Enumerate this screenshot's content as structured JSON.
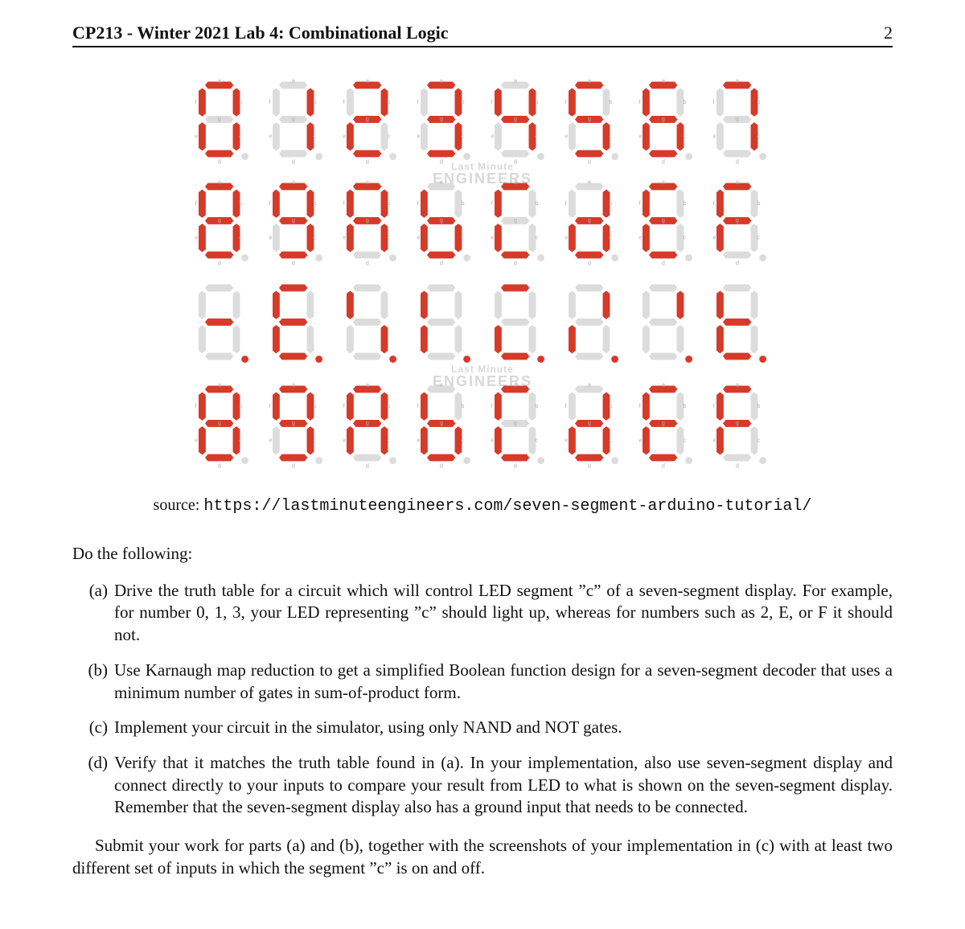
{
  "header": {
    "title": "CP213 - Winter 2021 Lab 4: Combinational Logic",
    "page_number": "2"
  },
  "caption": {
    "prefix": "source: ",
    "url": "https://lastminuteengineers.com/seven-segment-arduino-tutorial/"
  },
  "lead": "Do the following:",
  "tasks": [
    {
      "label": "(a)",
      "text": "Drive the truth table for a circuit which will control LED segment ”c” of a seven-segment display. For example, for number 0, 1, 3, your LED representing ”c” should light up, whereas for numbers such as 2, E, or F it should not."
    },
    {
      "label": "(b)",
      "text": "Use Karnaugh map reduction to get a simplified Boolean function design for a seven-segment decoder that uses a minimum number of gates in sum-of-product form."
    },
    {
      "label": "(c)",
      "text": "Implement your circuit in the simulator, using only NAND and NOT gates."
    },
    {
      "label": "(d)",
      "text": "Verify that it matches the truth table found in (a). In your implementation, also use seven-segment display and connect directly to your inputs to compare your result from LED to what is shown on the seven-segment display. Remember that the seven-segment display also has a ground input that needs to be connected."
    }
  ],
  "closing": "Submit your work for parts (a) and (b), together with the screenshots of your implementation in (c) with at least two different set of inputs in which the segment ”c” is on and off.",
  "figure": {
    "type": "infographic",
    "background_color": "#ffffff",
    "segment_on_color": "#d63a29",
    "segment_off_color": "#dcdcdc",
    "segment_outline": "#c7c7c7",
    "dp_present": true,
    "label_color": "#b0b0b0",
    "watermark_text_top": "Last Minute",
    "watermark_text_bottom": "ENGINEERS",
    "watermark_color": "#d8d8d8",
    "rows": [
      {
        "scale": 1.0,
        "labels": true,
        "digits": [
          {
            "name": "0",
            "seg": {
              "a": 1,
              "b": 1,
              "c": 1,
              "d": 1,
              "e": 1,
              "f": 1,
              "g": 0
            },
            "dp": 0
          },
          {
            "name": "1",
            "seg": {
              "a": 0,
              "b": 1,
              "c": 1,
              "d": 0,
              "e": 0,
              "f": 0,
              "g": 0
            },
            "dp": 0
          },
          {
            "name": "2",
            "seg": {
              "a": 1,
              "b": 1,
              "c": 0,
              "d": 1,
              "e": 1,
              "f": 0,
              "g": 1
            },
            "dp": 0
          },
          {
            "name": "3",
            "seg": {
              "a": 1,
              "b": 1,
              "c": 1,
              "d": 1,
              "e": 0,
              "f": 0,
              "g": 1
            },
            "dp": 0
          },
          {
            "name": "4",
            "seg": {
              "a": 0,
              "b": 1,
              "c": 1,
              "d": 0,
              "e": 0,
              "f": 1,
              "g": 1
            },
            "dp": 0
          },
          {
            "name": "5",
            "seg": {
              "a": 1,
              "b": 0,
              "c": 1,
              "d": 1,
              "e": 0,
              "f": 1,
              "g": 1
            },
            "dp": 0
          },
          {
            "name": "6",
            "seg": {
              "a": 1,
              "b": 0,
              "c": 1,
              "d": 1,
              "e": 1,
              "f": 1,
              "g": 1
            },
            "dp": 0
          },
          {
            "name": "7",
            "seg": {
              "a": 1,
              "b": 1,
              "c": 1,
              "d": 0,
              "e": 0,
              "f": 0,
              "g": 0
            },
            "dp": 0
          }
        ]
      },
      {
        "scale": 1.0,
        "labels": true,
        "digits": [
          {
            "name": "8",
            "seg": {
              "a": 1,
              "b": 1,
              "c": 1,
              "d": 1,
              "e": 1,
              "f": 1,
              "g": 1
            },
            "dp": 0
          },
          {
            "name": "9",
            "seg": {
              "a": 1,
              "b": 1,
              "c": 1,
              "d": 1,
              "e": 0,
              "f": 1,
              "g": 1
            },
            "dp": 0
          },
          {
            "name": "A",
            "seg": {
              "a": 1,
              "b": 1,
              "c": 1,
              "d": 0,
              "e": 1,
              "f": 1,
              "g": 1
            },
            "dp": 0
          },
          {
            "name": "b",
            "seg": {
              "a": 0,
              "b": 0,
              "c": 1,
              "d": 1,
              "e": 1,
              "f": 1,
              "g": 1
            },
            "dp": 0
          },
          {
            "name": "C",
            "seg": {
              "a": 1,
              "b": 0,
              "c": 0,
              "d": 1,
              "e": 1,
              "f": 1,
              "g": 0
            },
            "dp": 0
          },
          {
            "name": "d",
            "seg": {
              "a": 0,
              "b": 1,
              "c": 1,
              "d": 1,
              "e": 1,
              "f": 0,
              "g": 1
            },
            "dp": 0
          },
          {
            "name": "E",
            "seg": {
              "a": 1,
              "b": 0,
              "c": 0,
              "d": 1,
              "e": 1,
              "f": 1,
              "g": 1
            },
            "dp": 0
          },
          {
            "name": "F",
            "seg": {
              "a": 1,
              "b": 0,
              "c": 0,
              "d": 0,
              "e": 1,
              "f": 1,
              "g": 1
            },
            "dp": 0
          }
        ]
      },
      {
        "scale": 0.62,
        "labels": false,
        "digits": [
          {
            "name": "0i",
            "seg": {
              "a": 0,
              "b": 0,
              "c": 0,
              "d": 0,
              "e": 0,
              "f": 0,
              "g": 1
            },
            "dp": 1
          },
          {
            "name": "1i",
            "seg": {
              "a": 1,
              "b": 0,
              "c": 0,
              "d": 1,
              "e": 1,
              "f": 1,
              "g": 1
            },
            "dp": 1
          },
          {
            "name": "2i",
            "seg": {
              "a": 0,
              "b": 0,
              "c": 1,
              "d": 0,
              "e": 0,
              "f": 1,
              "g": 0
            },
            "dp": 1
          },
          {
            "name": "3i",
            "seg": {
              "a": 0,
              "b": 0,
              "c": 0,
              "d": 0,
              "e": 1,
              "f": 1,
              "g": 0
            },
            "dp": 1
          },
          {
            "name": "4i",
            "seg": {
              "a": 1,
              "b": 0,
              "c": 0,
              "d": 1,
              "e": 1,
              "f": 0,
              "g": 0
            },
            "dp": 1
          },
          {
            "name": "5i",
            "seg": {
              "a": 0,
              "b": 1,
              "c": 0,
              "d": 0,
              "e": 1,
              "f": 0,
              "g": 0
            },
            "dp": 1
          },
          {
            "name": "6i",
            "seg": {
              "a": 0,
              "b": 1,
              "c": 0,
              "d": 0,
              "e": 0,
              "f": 0,
              "g": 0
            },
            "dp": 1
          },
          {
            "name": "7i",
            "seg": {
              "a": 0,
              "b": 0,
              "c": 0,
              "d": 1,
              "e": 1,
              "f": 1,
              "g": 1
            },
            "dp": 1
          }
        ]
      },
      {
        "scale": 1.0,
        "labels": true,
        "digits": [
          {
            "name": "8",
            "seg": {
              "a": 1,
              "b": 1,
              "c": 1,
              "d": 1,
              "e": 1,
              "f": 1,
              "g": 1
            },
            "dp": 0
          },
          {
            "name": "9",
            "seg": {
              "a": 1,
              "b": 1,
              "c": 1,
              "d": 1,
              "e": 0,
              "f": 1,
              "g": 1
            },
            "dp": 0
          },
          {
            "name": "A",
            "seg": {
              "a": 1,
              "b": 1,
              "c": 1,
              "d": 0,
              "e": 1,
              "f": 1,
              "g": 1
            },
            "dp": 0
          },
          {
            "name": "b",
            "seg": {
              "a": 0,
              "b": 0,
              "c": 1,
              "d": 1,
              "e": 1,
              "f": 1,
              "g": 1
            },
            "dp": 0
          },
          {
            "name": "C",
            "seg": {
              "a": 1,
              "b": 0,
              "c": 0,
              "d": 1,
              "e": 1,
              "f": 1,
              "g": 0
            },
            "dp": 0
          },
          {
            "name": "d",
            "seg": {
              "a": 0,
              "b": 1,
              "c": 1,
              "d": 1,
              "e": 1,
              "f": 0,
              "g": 1
            },
            "dp": 0
          },
          {
            "name": "E",
            "seg": {
              "a": 1,
              "b": 0,
              "c": 0,
              "d": 1,
              "e": 1,
              "f": 1,
              "g": 1
            },
            "dp": 0
          },
          {
            "name": "F",
            "seg": {
              "a": 1,
              "b": 0,
              "c": 0,
              "d": 0,
              "e": 1,
              "f": 1,
              "g": 1
            },
            "dp": 0
          }
        ]
      }
    ]
  }
}
